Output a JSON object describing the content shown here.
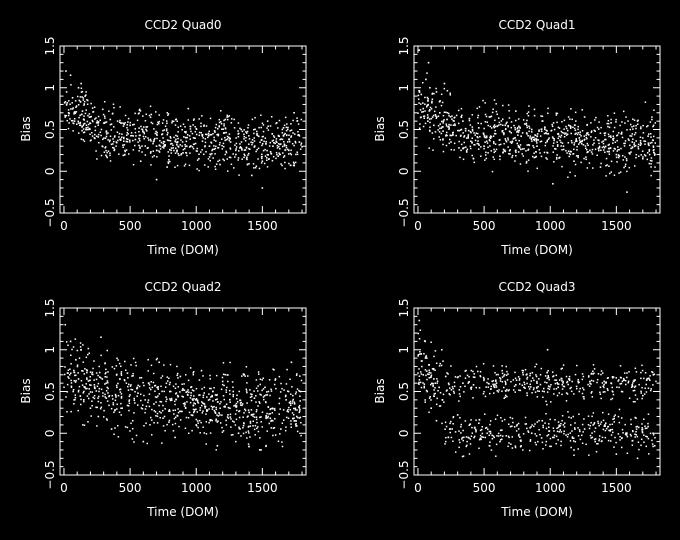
{
  "colors": {
    "background": "#000000",
    "foreground": "#ffffff"
  },
  "chart_data": [
    {
      "type": "scatter",
      "title": "CCD2 Quad0",
      "xlabel": "Time (DOM)",
      "ylabel": "Bias",
      "xlim": [
        -30,
        1830
      ],
      "ylim": [
        -0.5,
        1.5
      ],
      "xticks": [
        0,
        500,
        1000,
        1500
      ],
      "yticks": [
        -0.5,
        0,
        0.5,
        1,
        1.5
      ],
      "xtick_labels": [
        "0",
        "500",
        "1000",
        "1500"
      ],
      "ytick_labels": [
        "−0.5",
        "0",
        "0.5",
        "1",
        "1.5"
      ],
      "trend": [
        [
          0,
          0.75
        ],
        [
          150,
          0.65
        ],
        [
          300,
          0.45
        ],
        [
          600,
          0.42
        ],
        [
          1000,
          0.35
        ],
        [
          1400,
          0.33
        ],
        [
          1800,
          0.35
        ]
      ],
      "spread": 0.22,
      "points": [
        [
          5,
          0.82
        ],
        [
          20,
          0.95
        ],
        [
          35,
          0.7
        ],
        [
          50,
          1.15
        ],
        [
          65,
          0.88
        ],
        [
          80,
          0.6
        ],
        [
          95,
          0.78
        ],
        [
          110,
          1.0
        ],
        [
          125,
          0.55
        ],
        [
          140,
          0.72
        ],
        [
          160,
          0.9
        ],
        [
          180,
          0.5
        ],
        [
          200,
          0.65
        ],
        [
          230,
          0.4
        ],
        [
          260,
          0.58
        ],
        [
          290,
          0.3
        ],
        [
          320,
          0.47
        ],
        [
          350,
          0.62
        ],
        [
          380,
          0.25
        ],
        [
          420,
          0.45
        ],
        [
          460,
          0.2
        ],
        [
          500,
          0.55
        ],
        [
          540,
          0.38
        ],
        [
          580,
          0.12
        ],
        [
          620,
          0.5
        ],
        [
          660,
          0.68
        ],
        [
          700,
          0.3
        ],
        [
          740,
          0.44
        ],
        [
          780,
          0.05
        ],
        [
          820,
          0.6
        ],
        [
          860,
          0.35
        ],
        [
          900,
          0.22
        ],
        [
          940,
          0.75
        ],
        [
          980,
          0.4
        ],
        [
          1020,
          0.15
        ],
        [
          1060,
          0.55
        ],
        [
          1100,
          0.3
        ],
        [
          1140,
          0.48
        ],
        [
          1180,
          0.08
        ],
        [
          1220,
          0.62
        ],
        [
          1260,
          0.35
        ],
        [
          1300,
          0.2
        ],
        [
          1340,
          0.5
        ],
        [
          1380,
          0.28
        ],
        [
          1420,
          -0.05
        ],
        [
          1460,
          0.45
        ],
        [
          1500,
          0.12
        ],
        [
          1540,
          0.6
        ],
        [
          1580,
          0.3
        ],
        [
          1620,
          0.18
        ],
        [
          1660,
          0.52
        ],
        [
          1700,
          0.25
        ],
        [
          1740,
          0.7
        ],
        [
          1780,
          0.35
        ],
        [
          15,
          1.2
        ],
        [
          130,
          1.05
        ],
        [
          700,
          -0.1
        ],
        [
          1500,
          -0.2
        ]
      ]
    },
    {
      "type": "scatter",
      "title": "CCD2 Quad1",
      "xlabel": "Time (DOM)",
      "ylabel": "Bias",
      "xlim": [
        -30,
        1830
      ],
      "ylim": [
        -0.5,
        1.5
      ],
      "xticks": [
        0,
        500,
        1000,
        1500
      ],
      "yticks": [
        -0.5,
        0,
        0.5,
        1,
        1.5
      ],
      "xtick_labels": [
        "0",
        "500",
        "1000",
        "1500"
      ],
      "ytick_labels": [
        "−0.5",
        "0",
        "0.5",
        "1",
        "1.5"
      ],
      "trend": [
        [
          0,
          0.8
        ],
        [
          150,
          0.65
        ],
        [
          300,
          0.45
        ],
        [
          700,
          0.42
        ],
        [
          1100,
          0.38
        ],
        [
          1500,
          0.33
        ],
        [
          1800,
          0.35
        ]
      ],
      "spread": 0.24,
      "points": [
        [
          10,
          1.45
        ],
        [
          25,
          0.92
        ],
        [
          40,
          0.75
        ],
        [
          60,
          1.1
        ],
        [
          75,
          0.6
        ],
        [
          90,
          1.0
        ],
        [
          105,
          0.82
        ],
        [
          120,
          0.55
        ],
        [
          140,
          0.95
        ],
        [
          165,
          0.7
        ],
        [
          190,
          0.48
        ],
        [
          220,
          0.62
        ],
        [
          250,
          0.35
        ],
        [
          280,
          0.55
        ],
        [
          310,
          0.28
        ],
        [
          340,
          0.6
        ],
        [
          380,
          0.4
        ],
        [
          420,
          0.15
        ],
        [
          460,
          0.52
        ],
        [
          500,
          0.3
        ],
        [
          540,
          0.65
        ],
        [
          580,
          0.45
        ],
        [
          620,
          0.18
        ],
        [
          660,
          0.55
        ],
        [
          700,
          0.35
        ],
        [
          740,
          0.72
        ],
        [
          780,
          0.42
        ],
        [
          820,
          0.1
        ],
        [
          860,
          0.5
        ],
        [
          900,
          0.3
        ],
        [
          940,
          0.6
        ],
        [
          980,
          0.22
        ],
        [
          1020,
          -0.15
        ],
        [
          1060,
          0.45
        ],
        [
          1100,
          0.3
        ],
        [
          1140,
          0.55
        ],
        [
          1180,
          0.12
        ],
        [
          1220,
          0.4
        ],
        [
          1260,
          0.65
        ],
        [
          1300,
          0.25
        ],
        [
          1340,
          0.48
        ],
        [
          1380,
          0.05
        ],
        [
          1420,
          0.38
        ],
        [
          1460,
          0.58
        ],
        [
          1500,
          0.2
        ],
        [
          1540,
          0.45
        ],
        [
          1580,
          -0.25
        ],
        [
          1620,
          0.35
        ],
        [
          1660,
          0.6
        ],
        [
          1700,
          0.15
        ],
        [
          1740,
          0.42
        ],
        [
          1780,
          0.3
        ],
        [
          80,
          1.3
        ],
        [
          200,
          1.05
        ]
      ]
    },
    {
      "type": "scatter",
      "title": "CCD2 Quad2",
      "xlabel": "Time (DOM)",
      "ylabel": "Bias",
      "xlim": [
        -30,
        1830
      ],
      "ylim": [
        -0.5,
        1.5
      ],
      "xticks": [
        0,
        500,
        1000,
        1500
      ],
      "yticks": [
        -0.5,
        0,
        0.5,
        1,
        1.5
      ],
      "xtick_labels": [
        "0",
        "500",
        "1000",
        "1500"
      ],
      "ytick_labels": [
        "−0.5",
        "0",
        "0.5",
        "1",
        "1.5"
      ],
      "trend": [
        [
          0,
          0.7
        ],
        [
          150,
          0.62
        ],
        [
          350,
          0.45
        ],
        [
          700,
          0.4
        ],
        [
          1100,
          0.35
        ],
        [
          1500,
          0.3
        ],
        [
          1800,
          0.3
        ]
      ],
      "spread": 0.3,
      "points": [
        [
          10,
          1.3
        ],
        [
          30,
          0.72
        ],
        [
          50,
          1.1
        ],
        [
          70,
          0.5
        ],
        [
          90,
          0.88
        ],
        [
          110,
          0.65
        ],
        [
          130,
          1.0
        ],
        [
          150,
          0.4
        ],
        [
          175,
          0.75
        ],
        [
          200,
          0.3
        ],
        [
          230,
          0.58
        ],
        [
          260,
          0.2
        ],
        [
          290,
          0.65
        ],
        [
          320,
          0.42
        ],
        [
          360,
          0.05
        ],
        [
          400,
          0.55
        ],
        [
          440,
          0.3
        ],
        [
          480,
          0.72
        ],
        [
          520,
          0.15
        ],
        [
          560,
          0.48
        ],
        [
          600,
          -0.1
        ],
        [
          640,
          0.6
        ],
        [
          680,
          0.35
        ],
        [
          720,
          0.85
        ],
        [
          760,
          0.2
        ],
        [
          800,
          0.5
        ],
        [
          840,
          -0.05
        ],
        [
          880,
          0.68
        ],
        [
          920,
          0.3
        ],
        [
          960,
          0.55
        ],
        [
          1000,
          0.1
        ],
        [
          1040,
          0.75
        ],
        [
          1080,
          0.28
        ],
        [
          1120,
          0.45
        ],
        [
          1160,
          -0.15
        ],
        [
          1200,
          0.62
        ],
        [
          1240,
          0.22
        ],
        [
          1280,
          0.5
        ],
        [
          1320,
          0.0
        ],
        [
          1360,
          0.7
        ],
        [
          1400,
          0.25
        ],
        [
          1440,
          0.42
        ],
        [
          1480,
          -0.2
        ],
        [
          1520,
          0.55
        ],
        [
          1560,
          0.18
        ],
        [
          1600,
          0.65
        ],
        [
          1640,
          0.05
        ],
        [
          1680,
          0.4
        ],
        [
          1720,
          0.85
        ],
        [
          1760,
          0.2
        ],
        [
          1790,
          0.5
        ],
        [
          280,
          1.15
        ]
      ]
    },
    {
      "type": "scatter",
      "title": "CCD2 Quad3",
      "xlabel": "Time (DOM)",
      "ylabel": "Bias",
      "xlim": [
        -30,
        1830
      ],
      "ylim": [
        -0.5,
        1.5
      ],
      "xticks": [
        0,
        500,
        1000,
        1500
      ],
      "yticks": [
        -0.5,
        0,
        0.5,
        1,
        1.5
      ],
      "xtick_labels": [
        "0",
        "500",
        "1000",
        "1500"
      ],
      "ytick_labels": [
        "−0.5",
        "0",
        "0.5",
        "1",
        "1.5"
      ],
      "trend": [
        [
          0,
          0.8
        ],
        [
          100,
          0.65
        ],
        [
          200,
          0.5
        ],
        [
          400,
          0.35
        ],
        [
          800,
          0.3
        ],
        [
          1200,
          0.25
        ],
        [
          1800,
          0.25
        ]
      ],
      "bands": [
        [
          0.6,
          0.12
        ],
        [
          0.0,
          0.15
        ]
      ],
      "spread": 0.3,
      "points": [
        [
          10,
          1.35
        ],
        [
          25,
          0.95
        ],
        [
          40,
          0.7
        ],
        [
          55,
          1.1
        ],
        [
          70,
          0.5
        ],
        [
          85,
          0.82
        ],
        [
          100,
          0.3
        ],
        [
          120,
          0.65
        ],
        [
          140,
          0.15
        ],
        [
          160,
          0.55
        ],
        [
          185,
          0.4
        ],
        [
          210,
          0.68
        ],
        [
          240,
          0.05
        ],
        [
          270,
          0.5
        ],
        [
          300,
          0.22
        ],
        [
          340,
          0.6
        ],
        [
          380,
          -0.05
        ],
        [
          420,
          0.58
        ],
        [
          460,
          0.12
        ],
        [
          500,
          0.65
        ],
        [
          540,
          0.02
        ],
        [
          580,
          0.55
        ],
        [
          620,
          -0.1
        ],
        [
          660,
          0.62
        ],
        [
          700,
          0.08
        ],
        [
          740,
          0.58
        ],
        [
          780,
          -0.15
        ],
        [
          820,
          0.7
        ],
        [
          860,
          0.0
        ],
        [
          900,
          0.6
        ],
        [
          940,
          0.15
        ],
        [
          980,
          1.0
        ],
        [
          1020,
          -0.05
        ],
        [
          1060,
          0.55
        ],
        [
          1100,
          0.1
        ],
        [
          1140,
          0.65
        ],
        [
          1180,
          -0.2
        ],
        [
          1220,
          0.5
        ],
        [
          1260,
          0.05
        ],
        [
          1300,
          0.62
        ],
        [
          1340,
          -0.1
        ],
        [
          1380,
          0.55
        ],
        [
          1420,
          0.12
        ],
        [
          1460,
          0.6
        ],
        [
          1500,
          -0.25
        ],
        [
          1540,
          0.5
        ],
        [
          1580,
          0.0
        ],
        [
          1620,
          0.58
        ],
        [
          1660,
          -0.3
        ],
        [
          1700,
          0.45
        ],
        [
          1740,
          0.08
        ],
        [
          1780,
          0.7
        ],
        [
          1790,
          -0.15
        ],
        [
          180,
          1.0
        ]
      ]
    }
  ]
}
